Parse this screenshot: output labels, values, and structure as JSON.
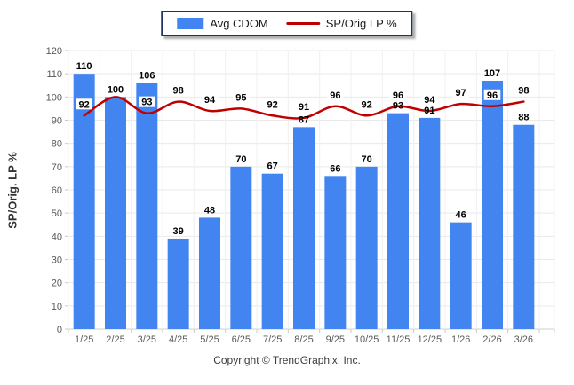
{
  "legend": {
    "items": [
      {
        "label": "Avg CDOM",
        "type": "bar",
        "color": "#4285f0"
      },
      {
        "label": "SP/Orig LP %",
        "type": "line",
        "color": "#c00000"
      }
    ]
  },
  "footer": {
    "copyright": "Copyright © TrendGraphix, Inc."
  },
  "chart_data": {
    "type": "combo",
    "title": "",
    "categories": [
      "1/25",
      "2/25",
      "3/25",
      "4/25",
      "5/25",
      "6/25",
      "7/25",
      "8/25",
      "9/25",
      "10/25",
      "11/25",
      "12/25",
      "1/26",
      "2/26",
      "3/26"
    ],
    "series": [
      {
        "name": "Avg CDOM",
        "type": "bar",
        "color": "#4285f0",
        "values": [
          110,
          100,
          106,
          39,
          48,
          70,
          67,
          87,
          66,
          70,
          93,
          91,
          46,
          107,
          88
        ]
      },
      {
        "name": "SP/Orig LP %",
        "type": "line",
        "color": "#c00000",
        "values": [
          92,
          100,
          93,
          98,
          94,
          95,
          92,
          91,
          96,
          92,
          96,
          94,
          97,
          96,
          98
        ]
      }
    ],
    "xlabel": "",
    "ylabel": "SP/Orig. LP %",
    "ylim": [
      0,
      120
    ],
    "ytick_step": 10,
    "yticks": [
      0,
      10,
      20,
      30,
      40,
      50,
      60,
      70,
      80,
      90,
      100,
      110,
      120
    ],
    "grid": true,
    "data_labels": true,
    "legend_position": "top-center"
  }
}
